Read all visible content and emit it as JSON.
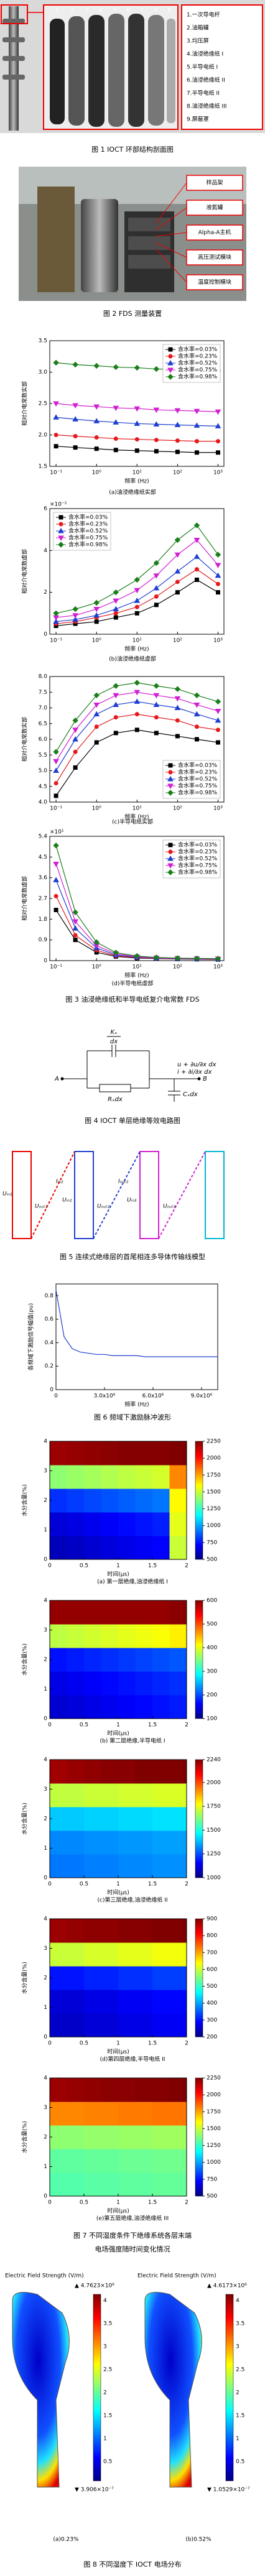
{
  "fig1": {
    "part_numbers": [
      1,
      2,
      3,
      4,
      5,
      6,
      7,
      8,
      9
    ],
    "labels": [
      "1.一次导电杆",
      "2.油箱罐",
      "3.均压屏",
      "4.油浸绝缘纸 I",
      "5.半导电纸 I",
      "6.油浸绝缘纸 II",
      "7.半导电纸 II",
      "8.油浸绝缘纸 III",
      "9.屏蔽罩"
    ],
    "caption": "图 1  IOCT 环部结构剖面图"
  },
  "fig2": {
    "labels": [
      "样品架",
      "液氮罐",
      "Alpha-A主机",
      "高压测试模块",
      "温度控制模块"
    ],
    "caption": "图 2  FDS 测量装置"
  },
  "fig3": {
    "caption": "图 3  油浸绝缘纸和半导电纸复介电常数 FDS"
  },
  "fig4": {
    "labels": [
      "A",
      "B",
      "Kₓ",
      "dx",
      "Rₓdx",
      "Cₓdx",
      "u + ∂u/∂x dx",
      "i + ∂i/∂x dx"
    ],
    "caption": "图 4  IOCT 单层绝缘等效电路图"
  },
  "fig5": {
    "labels": [
      "Uᵢₙ₁",
      "Uₒᵤₜ₁",
      "Iᵢₙ₂",
      "Uᵢₙ₂",
      "Uₒᵤₜ₂",
      "Iₒᵤₜ₂",
      "Uᵢₙ₃",
      "Uₒᵤₜ₃"
    ],
    "caption": "图 5  连续式绝缘层的首尾相连多导体传输线模型"
  },
  "fig6": {
    "caption": "图 6  频域下激励脉冲波形"
  },
  "fig7": {
    "caption": [
      "图 7  不同湿度条件下绝缘系统各层末端",
      "电场强度随时间变化情况"
    ]
  },
  "fig8": {
    "panels": [
      {
        "title": "Electric Field Strength (V/m)",
        "max": "▲ 4.7623×10⁶",
        "min": "▼ 3.906×10⁻⁷",
        "ticks": [
          4,
          3.5,
          3,
          2.5,
          2,
          1.5,
          1,
          0.5
        ],
        "caption": "(a)0.23%"
      },
      {
        "title": "Electric Field Strength (V/m)",
        "max": "▲ 4.6173×10⁶",
        "min": "▼ 1.0529×10⁻⁷",
        "ticks": [
          4,
          3.5,
          3,
          2.5,
          2,
          1.5,
          1,
          0.5
        ],
        "caption": "(b)0.52%"
      }
    ],
    "caption": "图 8  不同湿度下 IOCT 电场分布"
  },
  "chart_data": [
    {
      "type": "line",
      "caption": "(a)油浸绝缘纸实部",
      "xlabel": "频率 (Hz)",
      "ylabel": "相对介电常数实部",
      "xscale": "log",
      "legend": "upper right",
      "x": [
        0.1,
        0.3,
        1,
        3,
        10,
        30,
        100,
        300,
        1000
      ],
      "xlim": [
        0.07,
        1400
      ],
      "xticks": [
        {
          "value": 0.1,
          "label": "10⁻¹"
        },
        {
          "value": 1,
          "label": "10⁰"
        },
        {
          "value": 10,
          "label": "10¹"
        },
        {
          "value": 100,
          "label": "10²"
        },
        {
          "value": 1000,
          "label": "10³"
        }
      ],
      "ylim": [
        1.5,
        3.5
      ],
      "yticks": [
        1.5,
        {
          "value": 2,
          "label": "2.0"
        },
        2.5,
        {
          "value": 3,
          "label": "3.0"
        },
        3.5
      ],
      "series": [
        {
          "name": "含水率=0.03%",
          "color": "#000000",
          "marker": "square",
          "values": [
            1.82,
            1.8,
            1.78,
            1.76,
            1.75,
            1.74,
            1.73,
            1.72,
            1.72
          ]
        },
        {
          "name": "含水率=0.23%",
          "color": "#e41a1c",
          "marker": "circle",
          "values": [
            2.0,
            1.98,
            1.96,
            1.94,
            1.93,
            1.92,
            1.91,
            1.9,
            1.9
          ]
        },
        {
          "name": "含水率=0.52%",
          "color": "#1f3fd1",
          "marker": "triangle",
          "values": [
            2.28,
            2.25,
            2.22,
            2.2,
            2.18,
            2.17,
            2.16,
            2.15,
            2.14
          ]
        },
        {
          "name": "含水率=0.75%",
          "color": "#d11fd1",
          "marker": "down",
          "values": [
            2.5,
            2.47,
            2.45,
            2.43,
            2.42,
            2.4,
            2.39,
            2.38,
            2.37
          ]
        },
        {
          "name": "含水率=0.98%",
          "color": "#1a7f1a",
          "marker": "diamond",
          "values": [
            3.15,
            3.12,
            3.1,
            3.08,
            3.07,
            3.05,
            3.04,
            3.03,
            3.02
          ]
        }
      ]
    },
    {
      "type": "line",
      "caption": "(b)油浸绝缘纸虚部",
      "xlabel": "频率 (Hz)",
      "ylabel": "相对介电常数虚部",
      "y_multiplier": "×10⁻²",
      "xscale": "log",
      "legend": "upper left",
      "x": [
        0.1,
        0.3,
        1,
        3,
        10,
        30,
        100,
        300,
        1000
      ],
      "xlim": [
        0.07,
        1400
      ],
      "xticks": [
        {
          "value": 0.1,
          "label": "10⁻¹"
        },
        {
          "value": 1,
          "label": "10⁰"
        },
        {
          "value": 10,
          "label": "10¹"
        },
        {
          "value": 100,
          "label": "10²"
        },
        {
          "value": 1000,
          "label": "10³"
        }
      ],
      "ylim": [
        0,
        6
      ],
      "yticks": [
        0,
        2,
        4,
        6
      ],
      "series": [
        {
          "name": "含水率=0.03%",
          "color": "#000000",
          "marker": "square",
          "values": [
            0.4,
            0.5,
            0.6,
            0.8,
            1.0,
            1.4,
            2.0,
            2.6,
            2.0
          ]
        },
        {
          "name": "含水率=0.23%",
          "color": "#e41a1c",
          "marker": "circle",
          "values": [
            0.5,
            0.6,
            0.8,
            1.0,
            1.3,
            1.8,
            2.5,
            3.1,
            2.4
          ]
        },
        {
          "name": "含水率=0.52%",
          "color": "#1f3fd1",
          "marker": "triangle",
          "values": [
            0.6,
            0.7,
            0.9,
            1.2,
            1.6,
            2.2,
            3.0,
            3.7,
            2.8
          ]
        },
        {
          "name": "含水率=0.75%",
          "color": "#d11fd1",
          "marker": "down",
          "values": [
            0.8,
            0.9,
            1.2,
            1.6,
            2.1,
            2.8,
            3.8,
            4.5,
            3.3
          ]
        },
        {
          "name": "含水率=0.98%",
          "color": "#1a7f1a",
          "marker": "diamond",
          "values": [
            1.0,
            1.2,
            1.5,
            2.0,
            2.6,
            3.4,
            4.5,
            5.2,
            3.8
          ]
        }
      ]
    },
    {
      "type": "line",
      "caption": "(c)半导电纸实部",
      "xlabel": "频率 (Hz)",
      "ylabel": "相对介电常数实部",
      "xscale": "log",
      "legend": "lower right",
      "x": [
        0.1,
        0.3,
        1,
        3,
        10,
        30,
        100,
        300,
        1000
      ],
      "xlim": [
        0.07,
        1400
      ],
      "xticks": [
        {
          "value": 0.1,
          "label": "10⁻¹"
        },
        {
          "value": 1,
          "label": "10⁰"
        },
        {
          "value": 10,
          "label": "10¹"
        },
        {
          "value": 100,
          "label": "10²"
        },
        {
          "value": 1000,
          "label": "10³"
        }
      ],
      "ylim": [
        4,
        8
      ],
      "yticks": [
        {
          "value": 4,
          "label": "4.0"
        },
        4.5,
        {
          "value": 5,
          "label": "5.0"
        },
        5.5,
        {
          "value": 6,
          "label": "6.0"
        },
        6.5,
        {
          "value": 7,
          "label": "7.0"
        },
        7.5,
        {
          "value": 8,
          "label": "8.0"
        }
      ],
      "series": [
        {
          "name": "含水率=0.03%",
          "color": "#000000",
          "marker": "square",
          "values": [
            4.2,
            5.1,
            5.9,
            6.2,
            6.3,
            6.2,
            6.1,
            6.0,
            5.9
          ]
        },
        {
          "name": "含水率=0.23%",
          "color": "#e41a1c",
          "marker": "circle",
          "values": [
            4.6,
            5.6,
            6.4,
            6.7,
            6.8,
            6.7,
            6.6,
            6.4,
            6.3
          ]
        },
        {
          "name": "含水率=0.52%",
          "color": "#1f3fd1",
          "marker": "triangle",
          "values": [
            5.0,
            6.0,
            6.8,
            7.1,
            7.2,
            7.1,
            7.0,
            6.8,
            6.6
          ]
        },
        {
          "name": "含水率=0.75%",
          "color": "#d11fd1",
          "marker": "down",
          "values": [
            5.3,
            6.3,
            7.1,
            7.4,
            7.5,
            7.4,
            7.3,
            7.1,
            6.9
          ]
        },
        {
          "name": "含水率=0.98%",
          "color": "#1a7f1a",
          "marker": "diamond",
          "values": [
            5.6,
            6.6,
            7.4,
            7.7,
            7.8,
            7.7,
            7.6,
            7.4,
            7.2
          ]
        }
      ]
    },
    {
      "type": "line",
      "caption": "(d)半导电纸虚部",
      "xlabel": "频率 (Hz)",
      "ylabel": "相对介电常数虚部",
      "y_multiplier": "×10¹",
      "xscale": "log",
      "legend": "upper right",
      "x": [
        0.1,
        0.3,
        1,
        3,
        10,
        30,
        100,
        300,
        1000
      ],
      "xlim": [
        0.07,
        1400
      ],
      "xticks": [
        {
          "value": 0.1,
          "label": "10⁻¹"
        },
        {
          "value": 1,
          "label": "10⁰"
        },
        {
          "value": 10,
          "label": "10¹"
        },
        {
          "value": 100,
          "label": "10²"
        },
        {
          "value": 1000,
          "label": "10³"
        }
      ],
      "ylim": [
        0,
        5.4
      ],
      "yticks": [
        0,
        0.9,
        1.8,
        2.7,
        3.6,
        4.5,
        5.4
      ],
      "series": [
        {
          "name": "含水率=0.03%",
          "color": "#000000",
          "marker": "square",
          "values": [
            2.2,
            0.9,
            0.36,
            0.18,
            0.11,
            0.09,
            0.07,
            0.06,
            0.05
          ]
        },
        {
          "name": "含水率=0.23%",
          "color": "#e41a1c",
          "marker": "circle",
          "values": [
            2.8,
            1.1,
            0.45,
            0.21,
            0.13,
            0.1,
            0.08,
            0.07,
            0.06
          ]
        },
        {
          "name": "含水率=0.52%",
          "color": "#1f3fd1",
          "marker": "triangle",
          "values": [
            3.5,
            1.4,
            0.55,
            0.25,
            0.15,
            0.11,
            0.09,
            0.08,
            0.07
          ]
        },
        {
          "name": "含水率=0.75%",
          "color": "#d11fd1",
          "marker": "down",
          "values": [
            4.2,
            1.7,
            0.65,
            0.3,
            0.17,
            0.12,
            0.1,
            0.09,
            0.08
          ]
        },
        {
          "name": "含水率=0.98%",
          "color": "#1a7f1a",
          "marker": "diamond",
          "values": [
            5.0,
            2.1,
            0.8,
            0.35,
            0.2,
            0.14,
            0.11,
            0.1,
            0.09
          ]
        }
      ]
    },
    {
      "type": "line",
      "xlabel": "频率 (Hz)",
      "ylabel": "各频域下激励信号幅值(pu)",
      "x": [
        0,
        500000,
        1000000,
        1500000,
        2000000,
        2500000,
        3000000,
        3500000,
        4000000,
        4500000,
        5000000,
        5500000,
        6000000,
        6500000,
        7000000,
        7500000,
        8000000,
        8500000,
        9000000,
        9500000,
        10000000
      ],
      "xlim": [
        0,
        10000000
      ],
      "xticks": [
        0,
        {
          "value": 3000000,
          "label": "3.0x10⁶"
        },
        {
          "value": 6000000,
          "label": "6.0x10⁶"
        },
        {
          "value": 9000000,
          "label": "9.0x10⁶"
        }
      ],
      "ylim": [
        0,
        0.9
      ],
      "yticks": [
        0,
        0.2,
        0.4,
        0.6,
        0.8
      ],
      "series": [
        {
          "color": "#1f3fd1",
          "values": [
            0.85,
            0.45,
            0.35,
            0.32,
            0.31,
            0.3,
            0.3,
            0.29,
            0.29,
            0.29,
            0.29,
            0.28,
            0.28,
            0.28,
            0.28,
            0.28,
            0.28,
            0.28,
            0.28,
            0.28,
            0.28
          ]
        }
      ]
    },
    {
      "type": "heatmap",
      "caption": "(a) 第一层绝缘,油浸绝缘纸 I",
      "xlabel": "时间(μs)",
      "ylabel": "水分含量(%)",
      "xlim": [
        0,
        2
      ],
      "xticks": [
        0,
        0.5,
        1,
        1.5,
        2
      ],
      "ylim": [
        0,
        4
      ],
      "yticks": [
        0,
        1,
        2,
        3,
        4
      ],
      "zlim": [
        500,
        2250
      ],
      "zticks": [
        2250,
        2000,
        1750,
        1500,
        1250,
        1000,
        750,
        500
      ],
      "z": [
        [
          600,
          620,
          640,
          660,
          680,
          700,
          720,
          1500
        ],
        [
          650,
          670,
          690,
          710,
          730,
          750,
          770,
          1550
        ],
        [
          800,
          820,
          840,
          860,
          880,
          900,
          920,
          1600
        ],
        [
          1400,
          1420,
          1440,
          1460,
          1480,
          1500,
          1520,
          1800
        ],
        [
          2200,
          2210,
          2220,
          2230,
          2240,
          2240,
          2240,
          2250
        ]
      ]
    },
    {
      "type": "heatmap",
      "caption": "(b) 第二层绝缘,半导电纸 I",
      "xlabel": "时间(μs)",
      "ylabel": "水分含量(%)",
      "xlim": [
        0,
        2
      ],
      "xticks": [
        0,
        0.5,
        1,
        1.5,
        2
      ],
      "ylim": [
        0,
        4
      ],
      "yticks": [
        0,
        1,
        2,
        3,
        4
      ],
      "zlim": [
        100,
        600
      ],
      "zticks": [
        600,
        500,
        400,
        300,
        200,
        100
      ],
      "z": [
        [
          140,
          145,
          150,
          155,
          160,
          165,
          170,
          175
        ],
        [
          150,
          155,
          160,
          165,
          170,
          175,
          180,
          185
        ],
        [
          170,
          175,
          180,
          185,
          190,
          195,
          200,
          205
        ],
        [
          380,
          385,
          390,
          395,
          400,
          405,
          410,
          420
        ],
        [
          590,
          590,
          590,
          590,
          590,
          590,
          590,
          595
        ]
      ]
    },
    {
      "type": "heatmap",
      "caption": "(c)第三层绝缘,油浸绝缘纸 II",
      "xlabel": "时间(μs)",
      "ylabel": "水分含量(%)",
      "xlim": [
        0,
        2
      ],
      "xticks": [
        0,
        0.5,
        1,
        1.5,
        2
      ],
      "ylim": [
        0,
        4
      ],
      "yticks": [
        0,
        1,
        2,
        3,
        4
      ],
      "zlim": [
        1000,
        2240
      ],
      "zticks": [
        2240,
        2000,
        1750,
        1500,
        1250,
        1000
      ],
      "z": [
        [
          1300,
          1300,
          1310,
          1310,
          1320,
          1320,
          1330,
          1330
        ],
        [
          1320,
          1320,
          1330,
          1330,
          1340,
          1340,
          1350,
          1350
        ],
        [
          1400,
          1400,
          1410,
          1410,
          1420,
          1420,
          1430,
          1430
        ],
        [
          1700,
          1700,
          1710,
          1710,
          1720,
          1720,
          1730,
          1730
        ],
        [
          2200,
          2210,
          2220,
          2230,
          2230,
          2240,
          2240,
          2240
        ]
      ]
    },
    {
      "type": "heatmap",
      "caption": "(d)第四层绝缘,半导电纸 II",
      "xlabel": "时间(μs)",
      "ylabel": "水分含量(%)",
      "xlim": [
        0,
        2
      ],
      "xticks": [
        0,
        0.5,
        1,
        1.5,
        2
      ],
      "ylim": [
        0,
        4
      ],
      "yticks": [
        0,
        1,
        2,
        3,
        4
      ],
      "zlim": [
        200,
        900
      ],
      "zticks": [
        900,
        800,
        700,
        600,
        500,
        400,
        300,
        200
      ],
      "z": [
        [
          250,
          250,
          260,
          260,
          270,
          270,
          280,
          280
        ],
        [
          260,
          260,
          270,
          270,
          280,
          280,
          290,
          290
        ],
        [
          300,
          300,
          310,
          310,
          320,
          320,
          330,
          330
        ],
        [
          600,
          600,
          610,
          610,
          620,
          620,
          630,
          630
        ],
        [
          880,
          885,
          890,
          890,
          895,
          895,
          900,
          900
        ]
      ]
    },
    {
      "type": "heatmap",
      "caption": "(e)第五层绝缘,油浸绝缘纸 III",
      "xlabel": "时间(μs)",
      "ylabel": "水分含量(%)",
      "xlim": [
        0,
        2
      ],
      "xticks": [
        0,
        0.5,
        1,
        1.5,
        2
      ],
      "ylim": [
        0,
        4
      ],
      "yticks": [
        0,
        1,
        2,
        3,
        4
      ],
      "zlim": [
        500,
        2250
      ],
      "zticks": [
        2250,
        2000,
        1750,
        1500,
        1250,
        1000,
        750,
        500
      ],
      "z": [
        [
          1300,
          1300,
          1310,
          1310,
          1320,
          1320,
          1330,
          1330
        ],
        [
          1320,
          1320,
          1330,
          1330,
          1340,
          1340,
          1350,
          1350
        ],
        [
          1400,
          1400,
          1410,
          1410,
          1420,
          1420,
          1430,
          1430
        ],
        [
          1800,
          1800,
          1810,
          1810,
          1820,
          1820,
          1830,
          1830
        ],
        [
          2200,
          2210,
          2220,
          2230,
          2230,
          2240,
          2240,
          2250
        ]
      ]
    }
  ]
}
